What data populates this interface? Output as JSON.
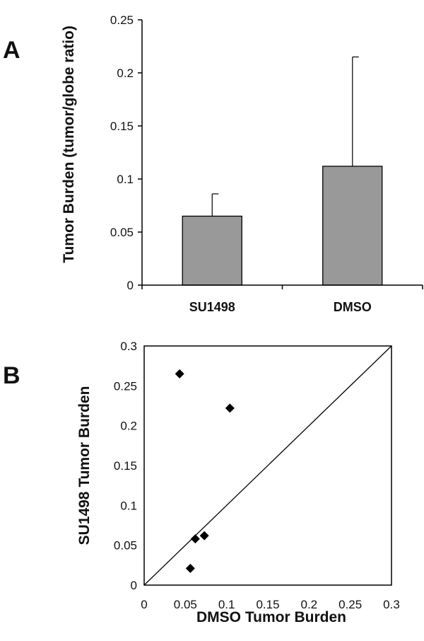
{
  "chart_data": [
    {
      "type": "bar",
      "panel_label": "A",
      "categories": [
        "SU1498",
        "DMSO"
      ],
      "values": [
        0.065,
        0.112
      ],
      "error_plus": [
        0.021,
        0.103
      ],
      "ylabel": "Tumor Burden (tumor/globe ratio)",
      "xlabel": "",
      "ylim": [
        0,
        0.25
      ],
      "yticks": [
        "0",
        "0.05",
        "0.1",
        "0.15",
        "0.2",
        "0.25"
      ],
      "grid": false,
      "bar_color": "#999999"
    },
    {
      "type": "scatter",
      "panel_label": "B",
      "points": [
        {
          "x": 0.043,
          "y": 0.265
        },
        {
          "x": 0.104,
          "y": 0.222
        },
        {
          "x": 0.073,
          "y": 0.062
        },
        {
          "x": 0.062,
          "y": 0.058
        },
        {
          "x": 0.056,
          "y": 0.021
        }
      ],
      "xlabel": "DMSO Tumor Burden",
      "ylabel": "SU1498 Tumor Burden",
      "xlim": [
        0,
        0.3
      ],
      "ylim": [
        0,
        0.3
      ],
      "xticks": [
        "0",
        "0.05",
        "0.1",
        "0.15",
        "0.2",
        "0.25",
        "0.3"
      ],
      "yticks": [
        "0",
        "0.05",
        "0.1",
        "0.15",
        "0.2",
        "0.25",
        "0.3"
      ],
      "identity_line": true,
      "grid": false,
      "marker": "diamond",
      "marker_color": "#000000"
    }
  ]
}
